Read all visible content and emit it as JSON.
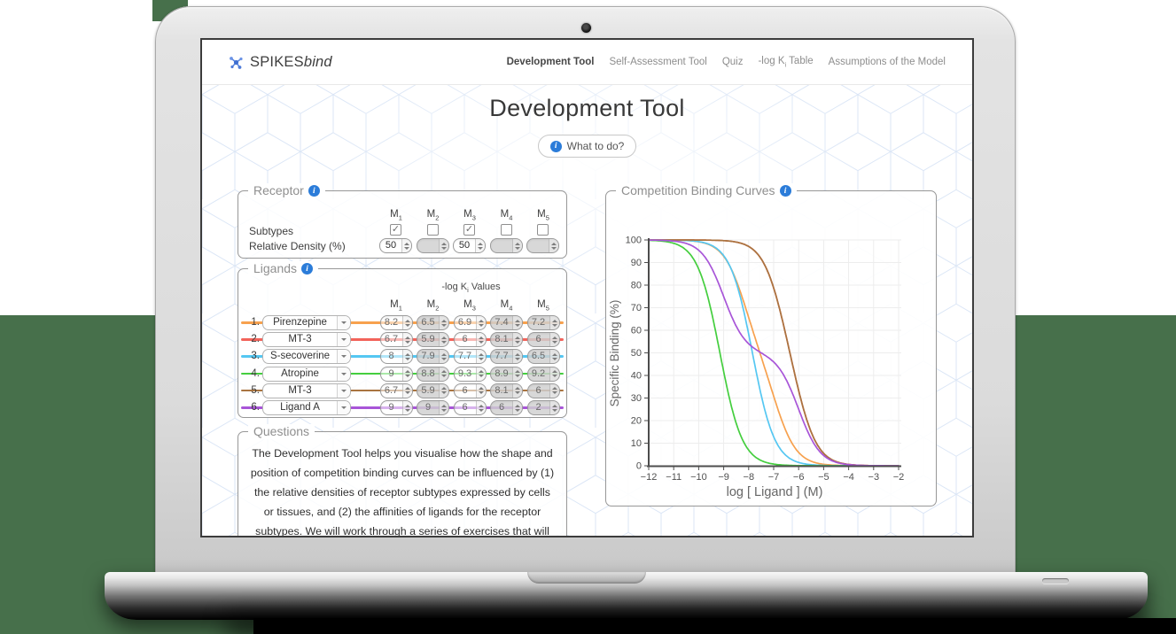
{
  "theme": {
    "info_icon_blue": "#2b7cd9",
    "backdrop_green": "#47704B",
    "legend_gray": "#8f8f8f"
  },
  "header": {
    "logo": {
      "main": "SPIKES",
      "suffix": "bind"
    },
    "nav": [
      {
        "label": "Development Tool",
        "active": true
      },
      {
        "label": "Self-Assessment Tool"
      },
      {
        "label": "Quiz"
      },
      {
        "parts": [
          "-log K",
          "i",
          " Table"
        ]
      },
      {
        "label": "Assumptions of the Model"
      }
    ]
  },
  "page": {
    "title": "Development Tool",
    "help_button": "What to do?"
  },
  "receptor": {
    "legend": "Receptor",
    "row_labels": {
      "subtypes": "Subtypes",
      "density": "Relative Density (%)"
    },
    "subtypes": [
      {
        "base": "M",
        "sub": "1",
        "checked": true,
        "density": "50"
      },
      {
        "base": "M",
        "sub": "2",
        "checked": false,
        "density": ""
      },
      {
        "base": "M",
        "sub": "3",
        "checked": true,
        "density": "50"
      },
      {
        "base": "M",
        "sub": "4",
        "checked": false,
        "density": ""
      },
      {
        "base": "M",
        "sub": "5",
        "checked": false,
        "density": ""
      }
    ]
  },
  "ligands": {
    "legend": "Ligands",
    "values_header": {
      "pre": "-log K",
      "sub": "i",
      "post": " Values"
    },
    "rows": [
      {
        "index": "1.",
        "name": "Pirenzepine",
        "color": "#F7A14E",
        "values": [
          "8.2",
          "6.5",
          "6.9",
          "7.4",
          "7.2"
        ]
      },
      {
        "index": "2.",
        "name": "MT-3",
        "color": "#F2635A",
        "values": [
          "6.7",
          "5.9",
          "6",
          "8.1",
          "6"
        ]
      },
      {
        "index": "3.",
        "name": "S-secoverine",
        "color": "#55C7F2",
        "values": [
          "8",
          "7.9",
          "7.7",
          "7.7",
          "6.5"
        ]
      },
      {
        "index": "4.",
        "name": "Atropine",
        "color": "#44CE3E",
        "values": [
          "9",
          "8.8",
          "9.3",
          "8.9",
          "9.2"
        ]
      },
      {
        "index": "5.",
        "name": "MT-3",
        "color": "#A97440",
        "values": [
          "6.7",
          "5.9",
          "6",
          "8.1",
          "6"
        ]
      },
      {
        "index": "6.",
        "name": "Ligand A",
        "color": "#A855D8",
        "values": [
          "9",
          "9",
          "6",
          "6",
          "2"
        ]
      }
    ]
  },
  "questions": {
    "legend": "Questions",
    "text": "The Development Tool helps you visualise how the shape and position of competition binding curves can be influenced by (1) the relative densities of receptor subtypes expressed by cells or tissues, and (2) the affinities of ligands for the receptor subtypes. We will work through a series of exercises that will hopefully increase your understanding of basic concepts of competition binding curves and"
  },
  "chart_data": {
    "type": "line",
    "title": "Competition Binding Curves",
    "xlabel": "log [ Ligand ] (M)",
    "ylabel": "Specific Binding (%)",
    "xlim": [
      -12,
      -2
    ],
    "ylim": [
      0,
      100
    ],
    "x_ticks": [
      -12,
      -11,
      -10,
      -9,
      -8,
      -7,
      -6,
      -5,
      -4,
      -3,
      -2
    ],
    "y_ticks": [
      0,
      10,
      20,
      30,
      40,
      50,
      60,
      70,
      80,
      90,
      100
    ],
    "grid": true,
    "legend_position": "none",
    "model": "y(x) = sum over receptor subtypes of density_pct / (1 + 10^(x + pKi))",
    "receptor_densities_pct": [
      50,
      0,
      50,
      0,
      0
    ],
    "series": [
      {
        "name": "Pirenzepine",
        "color": "#F7A14E",
        "pki": [
          8.2,
          6.5,
          6.9,
          7.4,
          7.2
        ]
      },
      {
        "name": "MT-3",
        "color": "#F2635A",
        "pki": [
          6.7,
          5.9,
          6,
          8.1,
          6
        ]
      },
      {
        "name": "S-secoverine",
        "color": "#55C7F2",
        "pki": [
          8,
          7.9,
          7.7,
          7.7,
          6.5
        ]
      },
      {
        "name": "Atropine",
        "color": "#44CE3E",
        "pki": [
          9,
          8.8,
          9.3,
          8.9,
          9.2
        ]
      },
      {
        "name": "MT-3",
        "color": "#A97440",
        "pki": [
          6.7,
          5.9,
          6,
          8.1,
          6
        ]
      },
      {
        "name": "Ligand A",
        "color": "#A855D8",
        "pki": [
          9,
          9,
          6,
          6,
          2
        ]
      }
    ]
  }
}
